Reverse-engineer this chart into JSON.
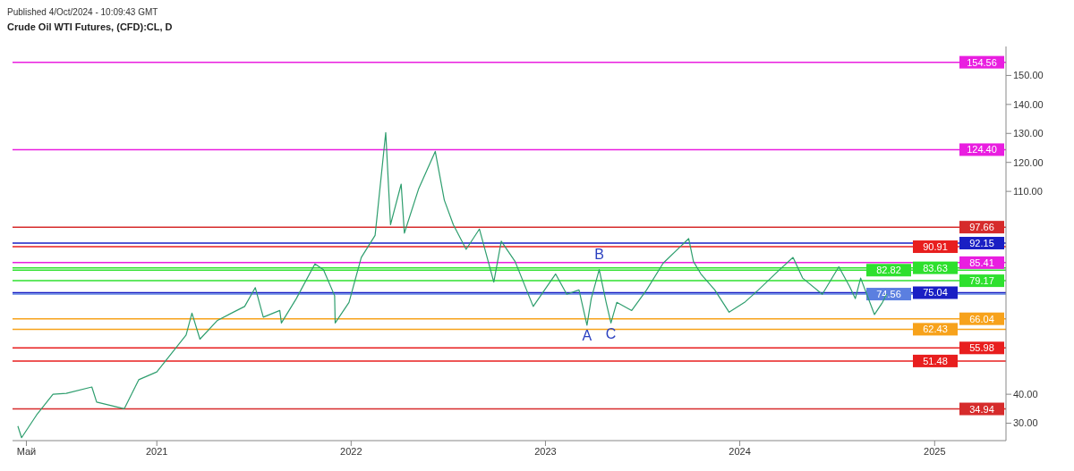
{
  "chart_data": {
    "type": "line",
    "title": "Crude Oil WTI Futures, (CFD):CL, D",
    "annotations": [
      "Published 4/Oct/2024 - 10:09:43 GMT",
      {
        "text": "A",
        "x": "2023-03-20",
        "y": 63.8
      },
      {
        "text": "B",
        "x": "2023-04-12",
        "y": 83
      },
      {
        "text": "C",
        "x": "2023-05-04",
        "y": 64.6
      }
    ],
    "x": [
      "2020-04-15",
      "2020-04-22",
      "2020-05-20",
      "2020-06-20",
      "2020-07-15",
      "2020-09-01",
      "2020-09-10",
      "2020-11-01",
      "2020-11-28",
      "2021-01-01",
      "2021-02-25",
      "2021-03-08",
      "2021-03-23",
      "2021-04-25",
      "2021-06-15",
      "2021-07-05",
      "2021-07-20",
      "2021-08-20",
      "2021-08-23",
      "2021-09-20",
      "2021-10-25",
      "2021-11-10",
      "2021-12-01",
      "2021-12-02",
      "2021-12-28",
      "2022-01-20",
      "2022-02-15",
      "2022-03-07",
      "2022-03-16",
      "2022-04-05",
      "2022-04-11",
      "2022-05-08",
      "2022-06-08",
      "2022-06-25",
      "2022-07-12",
      "2022-08-05",
      "2022-08-30",
      "2022-09-26",
      "2022-10-10",
      "2022-11-05",
      "2022-12-09",
      "2023-01-20",
      "2023-02-10",
      "2023-03-05",
      "2023-03-20",
      "2023-03-28",
      "2023-04-12",
      "2023-04-25",
      "2023-05-04",
      "2023-05-15",
      "2023-06-12",
      "2023-07-10",
      "2023-08-10",
      "2023-09-27",
      "2023-10-06",
      "2023-10-20",
      "2023-11-15",
      "2023-12-12",
      "2024-01-10",
      "2024-02-05",
      "2024-03-16",
      "2024-04-10",
      "2024-04-28",
      "2024-06-04",
      "2024-07-05",
      "2024-07-25",
      "2024-08-05",
      "2024-08-15",
      "2024-09-10",
      "2024-09-25",
      "2024-10-03"
    ],
    "series": [
      {
        "color": "#2e9e6e",
        "values": [
          29,
          25,
          32.8,
          40,
          40.3,
          42.5,
          37.3,
          35,
          45,
          47.7,
          60.4,
          68,
          59,
          65.5,
          70.3,
          76.8,
          66.6,
          68.9,
          64.6,
          73,
          85,
          83,
          74,
          64.6,
          71.7,
          87.2,
          94.8,
          130.3,
          98.5,
          112.5,
          95.6,
          111,
          123.8,
          107,
          98.5,
          90,
          97,
          78.7,
          92.8,
          85.8,
          70.3,
          81.5,
          74.5,
          76,
          63.8,
          73,
          83,
          71.7,
          64.6,
          71.7,
          68.9,
          76,
          85.2,
          93.7,
          85.8,
          81.5,
          76,
          68.3,
          71.7,
          76,
          83,
          87.2,
          80.1,
          74.5,
          84,
          77.3,
          73,
          80.1,
          67.5,
          71.7,
          74.5
        ]
      }
    ],
    "xlim": [
      "2020-04-05",
      "2025-05-15"
    ],
    "xticks": [
      {
        "value": "2020-05-01",
        "label": "Май"
      },
      {
        "value": "2021-01-01",
        "label": "2021"
      },
      {
        "value": "2022-01-01",
        "label": "2022"
      },
      {
        "value": "2023-01-01",
        "label": "2023"
      },
      {
        "value": "2024-01-01",
        "label": "2024"
      },
      {
        "value": "2025-01-01",
        "label": "2025"
      }
    ],
    "ylim": [
      24,
      160
    ],
    "yticks": [
      {
        "value": 30,
        "label": "30.00"
      },
      {
        "value": 40,
        "label": "40.00"
      },
      {
        "value": 110,
        "label": "110.00"
      },
      {
        "value": 120,
        "label": "120.00"
      },
      {
        "value": 130,
        "label": "130.00"
      },
      {
        "value": 140,
        "label": "140.00"
      },
      {
        "value": 150,
        "label": "150.00"
      }
    ],
    "ref_lines": [
      {
        "axis": "y",
        "value": 154.56,
        "label": "154.56",
        "color": "#e91ee0"
      },
      {
        "axis": "y",
        "value": 124.4,
        "label": "124.40",
        "color": "#e91ee0"
      },
      {
        "axis": "y",
        "value": 97.66,
        "label": "97.66",
        "color": "#d62b2b"
      },
      {
        "axis": "y",
        "value": 92.15,
        "label": "92.15",
        "color": "#1a1fc4"
      },
      {
        "axis": "y",
        "value": 90.91,
        "label": "90.91",
        "color": "#e81e1e"
      },
      {
        "axis": "y",
        "value": 85.41,
        "label": "85.41",
        "color": "#e91ee0"
      },
      {
        "axis": "y",
        "value": 83.63,
        "label": "83.63",
        "color": "#2ee02e"
      },
      {
        "axis": "y",
        "value": 82.82,
        "label": "82.82",
        "color": "#2ee02e"
      },
      {
        "axis": "y",
        "value": 79.17,
        "label": "79.17",
        "color": "#2ee02e"
      },
      {
        "axis": "y",
        "value": 75.04,
        "label": "75.04",
        "color": "#1a1fc4"
      },
      {
        "axis": "y",
        "value": 74.56,
        "label": "74.56",
        "color": "#5b7fe0"
      },
      {
        "axis": "y",
        "value": 66.04,
        "label": "66.04",
        "color": "#f7a21b"
      },
      {
        "axis": "y",
        "value": 62.43,
        "label": "62.43",
        "color": "#f7a21b"
      },
      {
        "axis": "y",
        "value": 55.98,
        "label": "55.98",
        "color": "#e81e1e"
      },
      {
        "axis": "y",
        "value": 51.48,
        "label": "51.48",
        "color": "#e81e1e"
      },
      {
        "axis": "y",
        "value": 34.94,
        "label": "34.94",
        "color": "#d62b2b"
      }
    ],
    "grid": false
  }
}
